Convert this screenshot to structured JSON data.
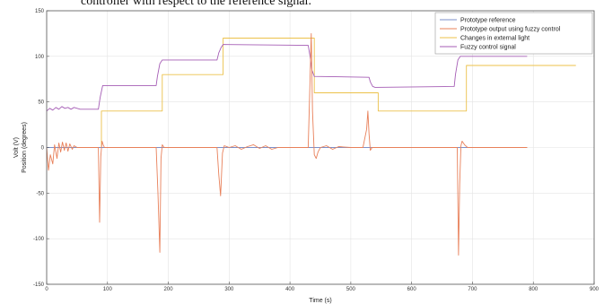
{
  "caption": "controller with respect to the reference signal.",
  "chart_data": {
    "type": "line",
    "xlabel": "Time (s)",
    "ylabel_lines": [
      "Volt (V)",
      "Position (degrees)"
    ],
    "xlim": [
      0,
      900
    ],
    "ylim": [
      -150,
      150
    ],
    "xticks": [
      0,
      100,
      200,
      300,
      400,
      500,
      600,
      700,
      800,
      900
    ],
    "yticks": [
      -150,
      -100,
      -50,
      0,
      50,
      100,
      150
    ],
    "grid": true,
    "legend_position": "top-right",
    "series": [
      {
        "name": "Prototype reference",
        "color": "#7b8fc9",
        "x": [
          0,
          790
        ],
        "y": [
          0,
          0
        ]
      },
      {
        "name": "Prototype output using fuzzy control",
        "color": "#e8805a",
        "x": [
          0,
          3,
          6,
          10,
          13,
          17,
          20,
          23,
          26,
          29,
          32,
          35,
          38,
          42,
          45,
          50,
          85,
          87,
          89,
          91,
          93,
          95,
          100,
          180,
          183,
          186,
          188,
          190,
          193,
          200,
          280,
          283,
          286,
          289,
          292,
          300,
          310,
          320,
          330,
          340,
          350,
          360,
          370,
          380,
          400,
          420,
          430,
          432,
          435,
          437,
          440,
          443,
          446,
          450,
          460,
          470,
          480,
          500,
          520,
          526,
          528,
          530,
          532,
          535,
          540,
          560,
          600,
          650,
          675,
          677,
          679,
          681,
          683,
          687,
          692,
          700,
          720,
          740,
          760,
          790
        ],
        "y": [
          0,
          -25,
          -8,
          -18,
          3,
          -12,
          5,
          -5,
          6,
          -3,
          5,
          -4,
          4,
          -2,
          2,
          0,
          0,
          -82,
          -10,
          7,
          3,
          0,
          0,
          0,
          -50,
          -115,
          -12,
          3,
          0,
          0,
          0,
          -30,
          -53,
          -6,
          2,
          0,
          2,
          -2,
          1,
          3,
          -1,
          2,
          -2,
          0,
          0,
          0,
          0,
          50,
          125,
          40,
          -8,
          -12,
          -5,
          0,
          2,
          -2,
          1,
          0,
          0,
          20,
          40,
          15,
          -3,
          0,
          0,
          0,
          0,
          0,
          0,
          -118,
          -40,
          2,
          7,
          3,
          0,
          0,
          0,
          0,
          0,
          0
        ]
      },
      {
        "name": "Changes in external light",
        "color": "#ecc14a",
        "x": [
          90,
          90,
          190,
          190,
          290,
          290,
          440,
          440,
          545,
          545,
          690,
          690,
          870
        ],
        "y": [
          0,
          40,
          40,
          80,
          80,
          120,
          120,
          60,
          60,
          40,
          40,
          90,
          90
        ]
      },
      {
        "name": "Fuzzy control signal",
        "color": "#a55db5",
        "x": [
          0,
          5,
          10,
          15,
          20,
          25,
          30,
          35,
          40,
          45,
          50,
          55,
          60,
          65,
          70,
          75,
          85,
          88,
          92,
          180,
          182,
          186,
          190,
          280,
          283,
          287,
          290,
          430,
          433,
          436,
          440,
          530,
          532,
          536,
          540,
          670,
          672,
          676,
          680,
          790
        ],
        "y": [
          40,
          43,
          41,
          44,
          42,
          45,
          43,
          44,
          42,
          44,
          43,
          42,
          42,
          42,
          42,
          42,
          42,
          55,
          68,
          68,
          78,
          92,
          96,
          96,
          104,
          110,
          113,
          112,
          100,
          85,
          78,
          77,
          72,
          67,
          66,
          67,
          80,
          96,
          100,
          100
        ]
      }
    ]
  }
}
